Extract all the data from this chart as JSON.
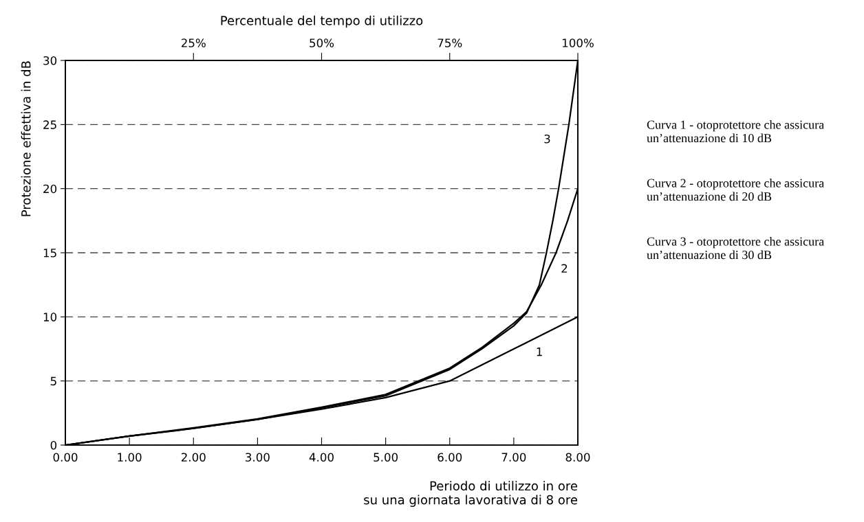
{
  "chart_data": {
    "type": "line",
    "xlabel": "Periodo di utilizzo in ore\nsu una giornata lavorativa di 8 ore",
    "ylabel": "Protezione effettiva in dB",
    "x2label": "Percentuale del tempo di utilizzo",
    "xlim": [
      0,
      8
    ],
    "xticks": [
      {
        "value": 0,
        "label": "0.00"
      },
      {
        "value": 1,
        "label": "1.00"
      },
      {
        "value": 2,
        "label": "2.00"
      },
      {
        "value": 3,
        "label": "3.00"
      },
      {
        "value": 4,
        "label": "4.00"
      },
      {
        "value": 5,
        "label": "5.00"
      },
      {
        "value": 6,
        "label": "6.00"
      },
      {
        "value": 7,
        "label": "7.00"
      },
      {
        "value": 8,
        "label": "8.00"
      }
    ],
    "x2lim": [
      0,
      100
    ],
    "x2ticks": [
      {
        "value": 25,
        "label": "25%"
      },
      {
        "value": 50,
        "label": "50%"
      },
      {
        "value": 75,
        "label": "75%"
      },
      {
        "value": 100,
        "label": "100%"
      }
    ],
    "ylim": [
      0,
      30
    ],
    "yticks": [
      0,
      5,
      10,
      15,
      20,
      25,
      30
    ],
    "grid": "y",
    "marker": "none",
    "series": [
      {
        "name": "1",
        "color": "#000000",
        "x": [
          0,
          1,
          2,
          3,
          4,
          5,
          6,
          8
        ],
        "values": [
          0,
          0.7,
          1.3,
          2.0,
          2.8,
          3.7,
          5,
          10
        ]
      },
      {
        "name": "2",
        "color": "#000000",
        "x": [
          0,
          1,
          2,
          3,
          4,
          5,
          6,
          6.5,
          7,
          7.2,
          7.43,
          7.66,
          7.84,
          8
        ],
        "values": [
          0,
          0.7,
          1.35,
          2.05,
          2.95,
          3.95,
          6.0,
          7.6,
          9.5,
          10.4,
          12.5,
          15,
          17.5,
          20
        ]
      },
      {
        "name": "3",
        "color": "#000000",
        "x": [
          0,
          1,
          2,
          3,
          4,
          5,
          6,
          6.5,
          7,
          7.2,
          7.4,
          7.51,
          7.61,
          7.7,
          7.78,
          7.86,
          7.93,
          8
        ],
        "values": [
          0,
          0.7,
          1.3,
          2.0,
          2.9,
          3.85,
          5.9,
          7.5,
          9.3,
          10.3,
          12.5,
          15,
          17.5,
          20,
          22.5,
          25,
          27.5,
          30
        ]
      }
    ],
    "annotations": [
      "Curva 1 - otoprotettore che assicura un’attenuazione di 10 dB",
      "Curva 2 - otoprotettore che assicura un’attenuazione di 20 dB",
      "Curva 3 - otoprotettore che assicura un’attenuazione di 30 dB"
    ]
  }
}
